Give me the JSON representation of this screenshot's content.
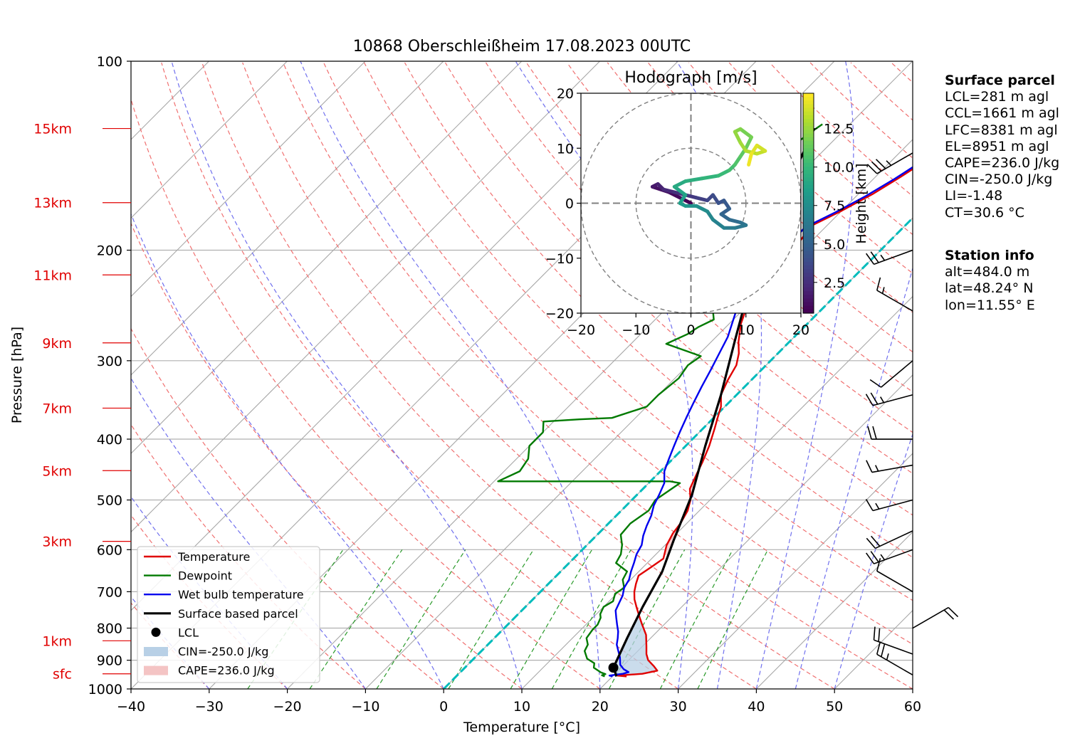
{
  "title": "10868 Oberschleißheim 17.08.2023 00UTC",
  "chart_data": {
    "type": "skew-t log-p diagram",
    "xlabel": "Temperature [°C]",
    "ylabel": "Pressure [hPa]",
    "xlim": [
      -40,
      60
    ],
    "ylim_hpa": [
      1000,
      100
    ],
    "x_ticks": [
      "−40",
      "−30",
      "−20",
      "−10",
      "0",
      "10",
      "20",
      "30",
      "40",
      "50",
      "60"
    ],
    "p_ticks": [
      "100",
      "200",
      "300",
      "400",
      "500",
      "600",
      "700",
      "800",
      "900",
      "1000"
    ],
    "height_labels": [
      {
        "label": "15km",
        "p": 128
      },
      {
        "label": "13km",
        "p": 168
      },
      {
        "label": "11km",
        "p": 219
      },
      {
        "label": "9km",
        "p": 281
      },
      {
        "label": "7km",
        "p": 357
      },
      {
        "label": "5km",
        "p": 449
      },
      {
        "label": "3km",
        "p": 582
      },
      {
        "label": "1km",
        "p": 838
      },
      {
        "label": "sfc",
        "p": 946
      }
    ],
    "series": [
      {
        "name": "Temperature",
        "color": "#e00000",
        "points": [
          [
            21.8,
            955
          ],
          [
            20.5,
            952
          ],
          [
            23.5,
            946
          ],
          [
            25,
            935
          ],
          [
            24,
            920
          ],
          [
            22.5,
            900
          ],
          [
            21.5,
            880
          ],
          [
            20.5,
            855
          ],
          [
            19,
            820
          ],
          [
            17.2,
            790
          ],
          [
            16,
            770
          ],
          [
            14.5,
            745
          ],
          [
            13,
            720
          ],
          [
            12,
            700
          ],
          [
            11.2,
            680
          ],
          [
            10.5,
            660
          ],
          [
            11,
            640
          ],
          [
            11.5,
            620
          ],
          [
            10.2,
            590
          ],
          [
            9.5,
            565
          ],
          [
            9.2,
            545
          ],
          [
            8.5,
            520
          ],
          [
            7.5,
            500
          ],
          [
            6,
            480
          ],
          [
            5,
            455
          ],
          [
            4.2,
            435
          ],
          [
            3,
            410
          ],
          [
            1.5,
            385
          ],
          [
            0.5,
            370
          ],
          [
            -0.5,
            355
          ],
          [
            -2,
            340
          ],
          [
            -3,
            322
          ],
          [
            -3.8,
            305
          ],
          [
            -5,
            292
          ],
          [
            -6.5,
            280
          ],
          [
            -8.5,
            262
          ],
          [
            -10,
            245
          ],
          [
            -11,
            228
          ],
          [
            -12.5,
            212
          ],
          [
            -13,
            198
          ],
          [
            -11.5,
            193
          ],
          [
            -12,
            183
          ],
          [
            -10,
            173
          ],
          [
            -8.2,
            163
          ],
          [
            -6.8,
            153
          ],
          [
            -5.5,
            143
          ],
          [
            -4.8,
            136
          ],
          [
            -4,
            128
          ]
        ]
      },
      {
        "name": "Dewpoint",
        "color": "#007a00",
        "points": [
          [
            19,
            955
          ],
          [
            18.5,
            951
          ],
          [
            18.8,
            947
          ],
          [
            18,
            941
          ],
          [
            16.5,
            925
          ],
          [
            16,
            910
          ],
          [
            14.5,
            895
          ],
          [
            13.2,
            870
          ],
          [
            12.8,
            850
          ],
          [
            11.8,
            830
          ],
          [
            11.5,
            805
          ],
          [
            11.5,
            790
          ],
          [
            11,
            770
          ],
          [
            10.5,
            760
          ],
          [
            10,
            740
          ],
          [
            10.5,
            725
          ],
          [
            9.8,
            705
          ],
          [
            10.2,
            690
          ],
          [
            9,
            670
          ],
          [
            8.5,
            650
          ],
          [
            6,
            630
          ],
          [
            5.5,
            610
          ],
          [
            4.5,
            590
          ],
          [
            3,
            568
          ],
          [
            2.8,
            545
          ],
          [
            3.5,
            520
          ],
          [
            3,
            500
          ],
          [
            4,
            470
          ],
          [
            2.5,
            467
          ],
          [
            -19.5,
            467
          ],
          [
            -18,
            450
          ],
          [
            -18.5,
            430
          ],
          [
            -20,
            410
          ],
          [
            -20,
            390
          ],
          [
            -21.3,
            375
          ],
          [
            -17,
            372
          ],
          [
            -13,
            370
          ],
          [
            -10,
            355
          ],
          [
            -10,
            340
          ],
          [
            -9.5,
            320
          ],
          [
            -10,
            305
          ],
          [
            -9.5,
            295
          ],
          [
            -15.5,
            282
          ],
          [
            -14,
            272
          ],
          [
            -13.5,
            265
          ],
          [
            -12.5,
            258
          ],
          [
            -14,
            248
          ],
          [
            -16,
            242
          ],
          [
            -17,
            232
          ],
          [
            -18,
            222
          ],
          [
            -19,
            215
          ],
          [
            -18.5,
            208
          ],
          [
            -20,
            202
          ],
          [
            -21.5,
            198
          ],
          [
            -21,
            193
          ],
          [
            -20,
            188
          ],
          [
            -21.5,
            180
          ],
          [
            -23,
            173
          ],
          [
            -23.5,
            165
          ],
          [
            -24,
            155
          ],
          [
            -25,
            145
          ],
          [
            -25.5,
            140
          ],
          [
            -24.5,
            136
          ],
          [
            -24,
            130
          ],
          [
            -23.5,
            126
          ]
        ]
      },
      {
        "name": "Wet bulb temperature",
        "color": "#0000ee",
        "points": [
          [
            20,
            955
          ],
          [
            19.5,
            952
          ],
          [
            21,
            946
          ],
          [
            21.5,
            940
          ],
          [
            20.5,
            930
          ],
          [
            19.5,
            915
          ],
          [
            18.5,
            890
          ],
          [
            17.5,
            870
          ],
          [
            16.5,
            850
          ],
          [
            15.8,
            830
          ],
          [
            15,
            810
          ],
          [
            14,
            790
          ],
          [
            13,
            770
          ],
          [
            12,
            750
          ],
          [
            11.5,
            730
          ],
          [
            11,
            710
          ],
          [
            10.2,
            690
          ],
          [
            9.8,
            670
          ],
          [
            9,
            650
          ],
          [
            8.3,
            630
          ],
          [
            7.5,
            610
          ],
          [
            7,
            590
          ],
          [
            6,
            570
          ],
          [
            5.2,
            550
          ],
          [
            4.5,
            530
          ],
          [
            3.5,
            510
          ],
          [
            2.8,
            490
          ],
          [
            2,
            470
          ],
          [
            0.5,
            450
          ],
          [
            -0.5,
            430
          ],
          [
            -1.5,
            410
          ],
          [
            -2.5,
            390
          ],
          [
            -3.5,
            370
          ],
          [
            -4.5,
            350
          ],
          [
            -5.5,
            330
          ],
          [
            -6.5,
            310
          ],
          [
            -7.5,
            292
          ],
          [
            -8.5,
            275
          ],
          [
            -10,
            258
          ],
          [
            -11.5,
            242
          ],
          [
            -12.5,
            226
          ],
          [
            -13.3,
            212
          ],
          [
            -13.6,
            200
          ],
          [
            -12.4,
            194
          ],
          [
            -12.6,
            184
          ],
          [
            -10.6,
            174
          ],
          [
            -8.8,
            164
          ],
          [
            -7.3,
            154
          ],
          [
            -6,
            144
          ],
          [
            -5.2,
            137
          ],
          [
            -4.4,
            129
          ]
        ]
      },
      {
        "name": "Surface based parcel",
        "color": "#000000",
        "points": [
          [
            20.5,
            955
          ],
          [
            19.3,
            930
          ],
          [
            19,
            925
          ],
          [
            17,
            830
          ],
          [
            15,
            740
          ],
          [
            13,
            650
          ],
          [
            10.5,
            580
          ],
          [
            7,
            490
          ],
          [
            2.5,
            410
          ],
          [
            -2,
            340
          ],
          [
            -7,
            280
          ],
          [
            -12,
            230
          ],
          [
            -15,
            200
          ],
          [
            -18,
            175
          ],
          [
            -21,
            150
          ],
          [
            -24,
            128
          ]
        ]
      }
    ],
    "lcl": {
      "t": 19.0,
      "p": 925
    },
    "shaded_areas": [
      {
        "name": "CIN=-250.0 J/kg",
        "color": "#b8d0e6"
      },
      {
        "name": "CAPE=236.0 J/kg",
        "color": "#f4c4c4"
      }
    ],
    "legend_position": "lower left",
    "freezing_line": {
      "color": "#00bcbc",
      "isotherm_c": 0
    }
  },
  "hodograph": {
    "title": "Hodograph [m/s]",
    "xlim": [
      -20,
      20
    ],
    "ylim": [
      -20,
      20
    ],
    "x_ticks": [
      "−20",
      "−10",
      "0",
      "10",
      "20"
    ],
    "y_ticks": [
      "20",
      "10",
      "0",
      "−10",
      "−20"
    ],
    "rings_ms": [
      10,
      20
    ],
    "colorbar_label": "Height [km]",
    "colorbar_ticks": [
      "2.5",
      "5.0",
      "7.5",
      "10.0",
      "12.5"
    ],
    "colormap": "viridis",
    "trace_uv": [
      [
        0,
        0
      ],
      [
        -2,
        1
      ],
      [
        -4,
        2
      ],
      [
        -7,
        3
      ],
      [
        -6,
        3.5
      ],
      [
        -5,
        2.5
      ],
      [
        -3,
        2
      ],
      [
        -1,
        1.5
      ],
      [
        1,
        1
      ],
      [
        3,
        0.5
      ],
      [
        4,
        1.5
      ],
      [
        5,
        0
      ],
      [
        6,
        0.5
      ],
      [
        7,
        -1
      ],
      [
        5.5,
        -2
      ],
      [
        7,
        -3
      ],
      [
        9,
        -3.5
      ],
      [
        10,
        -4
      ],
      [
        8,
        -4.5
      ],
      [
        6,
        -4.5
      ],
      [
        4,
        -3
      ],
      [
        3,
        -1.5
      ],
      [
        1,
        -0.5
      ],
      [
        -1,
        -0.5
      ],
      [
        -2,
        0
      ],
      [
        -1,
        1.5
      ],
      [
        -3,
        3
      ],
      [
        -1,
        4
      ],
      [
        2,
        4.5
      ],
      [
        5,
        5
      ],
      [
        7,
        6
      ],
      [
        8,
        7
      ],
      [
        9,
        8.5
      ],
      [
        10,
        10
      ],
      [
        11,
        12
      ],
      [
        9,
        13.5
      ],
      [
        8,
        13
      ],
      [
        9,
        11
      ],
      [
        10,
        9.5
      ],
      [
        12,
        9
      ],
      [
        13.5,
        9.5
      ],
      [
        12,
        10.5
      ],
      [
        11,
        9
      ],
      [
        10.5,
        7
      ]
    ]
  },
  "wind_barbs": [
    {
      "p": 140,
      "speed_kt": 35,
      "dir_deg": 240
    },
    {
      "p": 200,
      "speed_kt": 25,
      "dir_deg": 250
    },
    {
      "p": 250,
      "speed_kt": 15,
      "dir_deg": 300
    },
    {
      "p": 300,
      "speed_kt": 10,
      "dir_deg": 230
    },
    {
      "p": 340,
      "speed_kt": 25,
      "dir_deg": 255
    },
    {
      "p": 400,
      "speed_kt": 20,
      "dir_deg": 270
    },
    {
      "p": 440,
      "speed_kt": 15,
      "dir_deg": 260
    },
    {
      "p": 500,
      "speed_kt": 15,
      "dir_deg": 255
    },
    {
      "p": 560,
      "speed_kt": 20,
      "dir_deg": 245
    },
    {
      "p": 600,
      "speed_kt": 25,
      "dir_deg": 250
    },
    {
      "p": 700,
      "speed_kt": 10,
      "dir_deg": 300
    },
    {
      "p": 800,
      "speed_kt": 20,
      "dir_deg": 60
    },
    {
      "p": 880,
      "speed_kt": 20,
      "dir_deg": 290
    },
    {
      "p": 950,
      "speed_kt": 25,
      "dir_deg": 300
    }
  ],
  "info": {
    "surface_title": "Surface parcel",
    "surface_lines": [
      "LCL=281 m agl",
      "CCL=1661 m agl",
      "LFC=8381 m agl",
      "EL=8951 m agl",
      "CAPE=236.0 J/kg",
      "CIN=-250.0 J/kg",
      "LI=-1.48",
      "CT=30.6 °C"
    ],
    "station_title": "Station info",
    "station_lines": [
      "alt=484.0 m",
      "lat=48.24° N",
      "lon=11.55° E"
    ]
  },
  "legend": {
    "temperature": "Temperature",
    "dewpoint": "Dewpoint",
    "wetbulb": "Wet bulb temperature",
    "parcel": "Surface based parcel",
    "lcl": "LCL",
    "cin": "CIN=-250.0 J/kg",
    "cape": "CAPE=236.0 J/kg"
  }
}
